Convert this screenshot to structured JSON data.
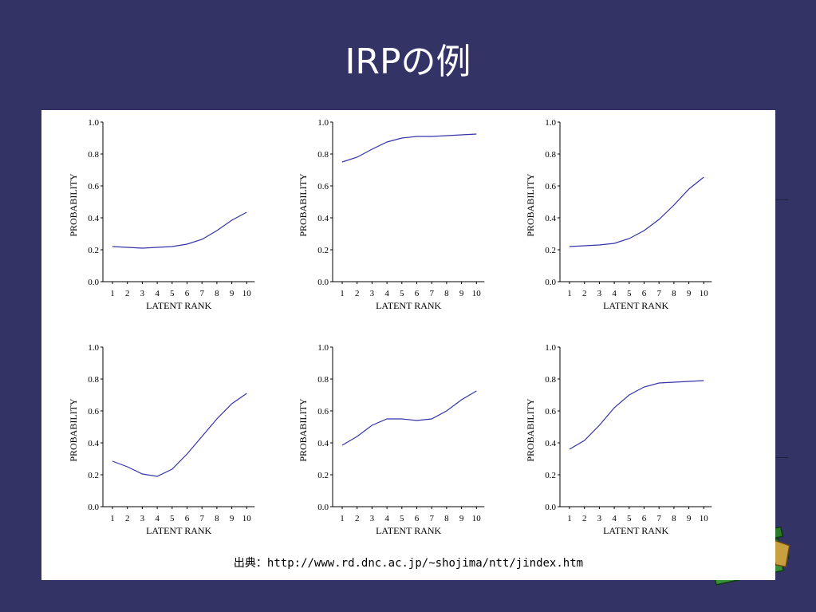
{
  "slide": {
    "title": "IRPの例",
    "source": "出典：http://www.rd.dnc.ac.jp/~shojima/ntt/jindex.htm"
  },
  "colors": {
    "background": "#333366",
    "curve": "#3333aa",
    "panel": "#ffffff"
  },
  "chart_data": [
    {
      "type": "line",
      "x": [
        1,
        2,
        3,
        4,
        5,
        6,
        7,
        8,
        9,
        10
      ],
      "values": [
        0.22,
        0.215,
        0.21,
        0.215,
        0.22,
        0.235,
        0.265,
        0.32,
        0.385,
        0.435
      ],
      "xlabel": "LATENT RANK",
      "ylabel": "PROBABILITY",
      "xticks": [
        "1",
        "2",
        "3",
        "4",
        "5",
        "6",
        "7",
        "8",
        "9",
        "10"
      ],
      "yticks": [
        "0.0",
        "0.2",
        "0.4",
        "0.6",
        "0.8",
        "1.0"
      ],
      "ylim": [
        0,
        1
      ],
      "grid": false
    },
    {
      "type": "line",
      "x": [
        1,
        2,
        3,
        4,
        5,
        6,
        7,
        8,
        9,
        10
      ],
      "values": [
        0.75,
        0.78,
        0.83,
        0.875,
        0.9,
        0.91,
        0.91,
        0.915,
        0.92,
        0.925
      ],
      "xlabel": "LATENT RANK",
      "ylabel": "PROBABILITY",
      "xticks": [
        "1",
        "2",
        "3",
        "4",
        "5",
        "6",
        "7",
        "8",
        "9",
        "10"
      ],
      "yticks": [
        "0.0",
        "0.2",
        "0.4",
        "0.6",
        "0.8",
        "1.0"
      ],
      "ylim": [
        0,
        1
      ],
      "grid": false
    },
    {
      "type": "line",
      "x": [
        1,
        2,
        3,
        4,
        5,
        6,
        7,
        8,
        9,
        10
      ],
      "values": [
        0.22,
        0.225,
        0.23,
        0.24,
        0.27,
        0.32,
        0.39,
        0.48,
        0.58,
        0.655
      ],
      "xlabel": "LATENT RANK",
      "ylabel": "PROBABILITY",
      "xticks": [
        "1",
        "2",
        "3",
        "4",
        "5",
        "6",
        "7",
        "8",
        "9",
        "10"
      ],
      "yticks": [
        "0.0",
        "0.2",
        "0.4",
        "0.6",
        "0.8",
        "1.0"
      ],
      "ylim": [
        0,
        1
      ],
      "grid": false
    },
    {
      "type": "line",
      "x": [
        1,
        2,
        3,
        4,
        5,
        6,
        7,
        8,
        9,
        10
      ],
      "values": [
        0.285,
        0.25,
        0.205,
        0.19,
        0.235,
        0.33,
        0.44,
        0.55,
        0.645,
        0.71
      ],
      "xlabel": "LATENT RANK",
      "ylabel": "PROBABILITY",
      "xticks": [
        "1",
        "2",
        "3",
        "4",
        "5",
        "6",
        "7",
        "8",
        "9",
        "10"
      ],
      "yticks": [
        "0.0",
        "0.2",
        "0.4",
        "0.6",
        "0.8",
        "1.0"
      ],
      "ylim": [
        0,
        1
      ],
      "grid": false
    },
    {
      "type": "line",
      "x": [
        1,
        2,
        3,
        4,
        5,
        6,
        7,
        8,
        9,
        10
      ],
      "values": [
        0.385,
        0.44,
        0.51,
        0.55,
        0.55,
        0.54,
        0.55,
        0.6,
        0.67,
        0.725
      ],
      "xlabel": "LATENT RANK",
      "ylabel": "PROBABILITY",
      "xticks": [
        "1",
        "2",
        "3",
        "4",
        "5",
        "6",
        "7",
        "8",
        "9",
        "10"
      ],
      "yticks": [
        "0.0",
        "0.2",
        "0.4",
        "0.6",
        "0.8",
        "1.0"
      ],
      "ylim": [
        0,
        1
      ],
      "grid": false
    },
    {
      "type": "line",
      "x": [
        1,
        2,
        3,
        4,
        5,
        6,
        7,
        8,
        9,
        10
      ],
      "values": [
        0.36,
        0.415,
        0.51,
        0.62,
        0.7,
        0.75,
        0.775,
        0.78,
        0.785,
        0.79
      ],
      "xlabel": "LATENT RANK",
      "ylabel": "PROBABILITY",
      "xticks": [
        "1",
        "2",
        "3",
        "4",
        "5",
        "6",
        "7",
        "8",
        "9",
        "10"
      ],
      "yticks": [
        "0.0",
        "0.2",
        "0.4",
        "0.6",
        "0.8",
        "1.0"
      ],
      "ylim": [
        0,
        1
      ],
      "grid": false
    }
  ]
}
